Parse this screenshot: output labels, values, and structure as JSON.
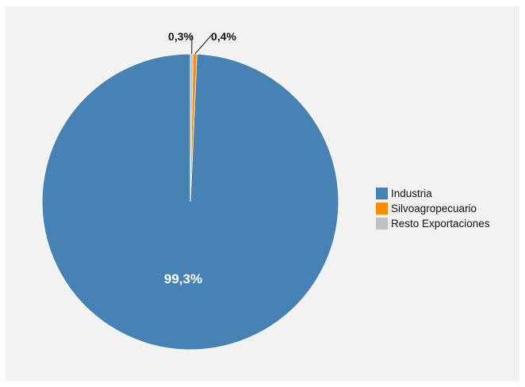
{
  "chart_data": {
    "type": "pie",
    "title": "",
    "slices": [
      {
        "label": "Industria",
        "value": 99.3,
        "display": "99,3%",
        "color": "#4682b4"
      },
      {
        "label": "Silvoagropecuario",
        "value": 0.4,
        "display": "0,4%",
        "color": "#ff8c00"
      },
      {
        "label": "Resto Exportaciones",
        "value": 0.3,
        "display": "0,3%",
        "color": "#c0c0c0"
      }
    ],
    "legend_position": "right"
  }
}
